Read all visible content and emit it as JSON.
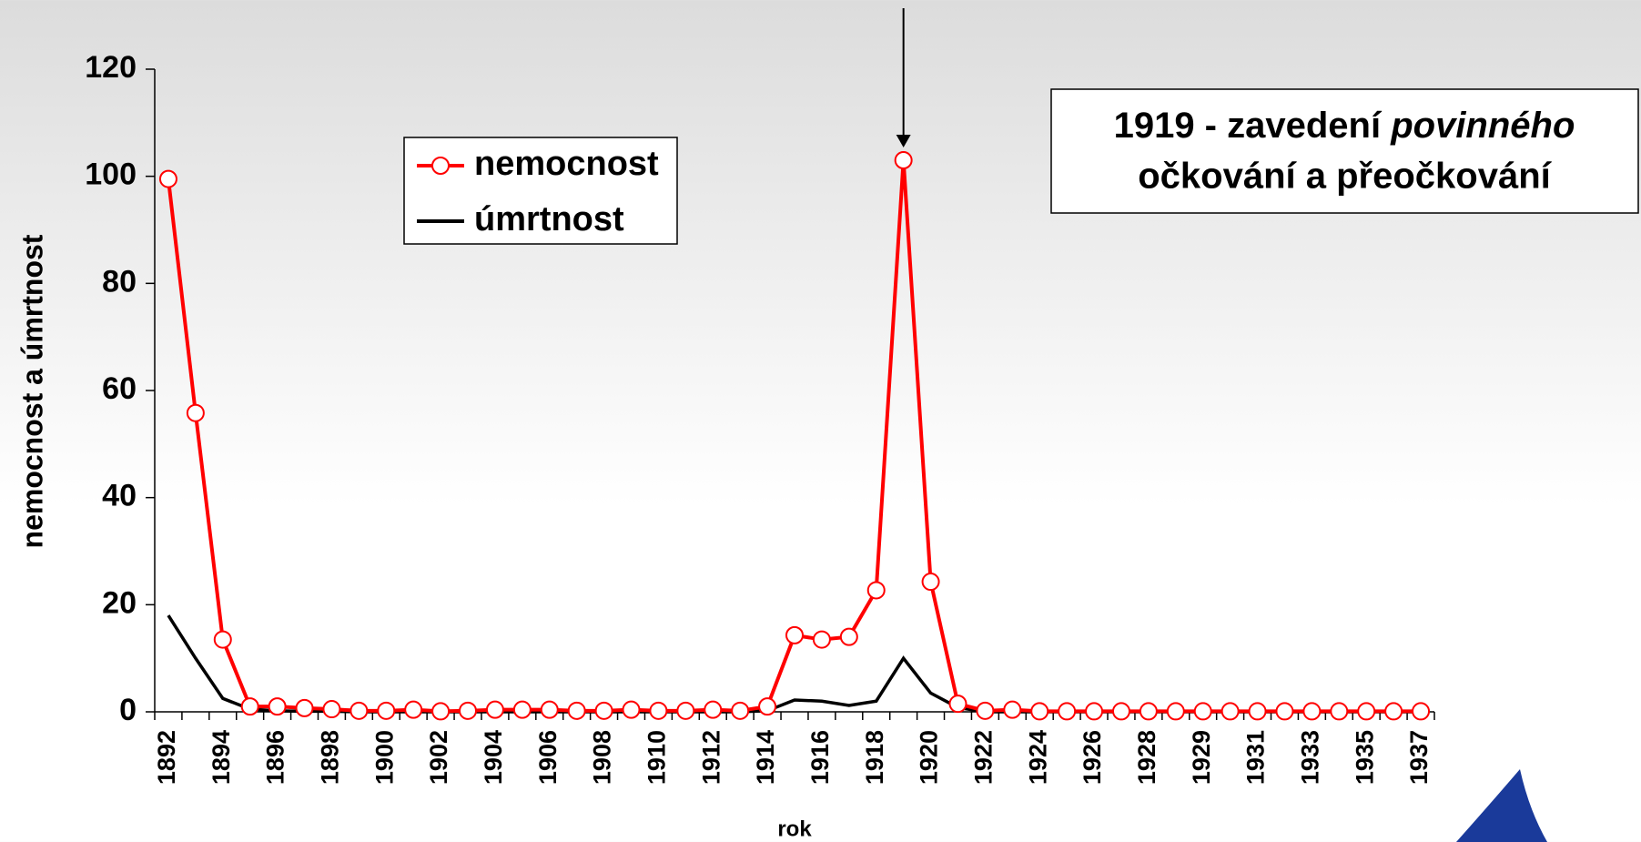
{
  "chart_data": {
    "type": "line",
    "x_label": "rok",
    "y_label": "nemocnost a úmrtnost",
    "annotation": {
      "line1": "1919 - zavedení",
      "line1_italic": "povinného",
      "line2": "očkování a přeočkování"
    },
    "categories": [
      "1892",
      null,
      "1894",
      null,
      "1896",
      null,
      "1898",
      null,
      "1900",
      null,
      "1902",
      null,
      "1904",
      null,
      "1906",
      null,
      "1908",
      null,
      "1910",
      null,
      "1912",
      null,
      "1914",
      null,
      "1916",
      null,
      "1918",
      null,
      "1920",
      null,
      "1922",
      null,
      "1924",
      null,
      "1926",
      null,
      "1928",
      null,
      "1929",
      null,
      "1931",
      null,
      "1933",
      null,
      "1935",
      null,
      "1937"
    ],
    "series": [
      {
        "name": "nemocnost",
        "color": "#ff0000",
        "marker": "circle",
        "values": [
          99.5,
          55.8,
          13.5,
          1,
          1,
          0.7,
          0.5,
          0.2,
          0.2,
          0.4,
          0.1,
          0.2,
          0.4,
          0.4,
          0.4,
          0.2,
          0.2,
          0.4,
          0.2,
          0.2,
          0.4,
          0.2,
          1,
          14.3,
          13.5,
          14,
          22.7,
          103,
          24.3,
          1.5,
          0.2,
          0.4,
          0.1,
          0.1,
          0.1,
          0.1,
          0.1,
          0.1,
          0.1,
          0.1,
          0.1,
          0.1,
          0.1,
          0.1,
          0.1,
          0.1,
          0.1
        ]
      },
      {
        "name": "úmrtnost",
        "color": "#000000",
        "values": [
          18,
          10,
          2.5,
          0.5,
          0.2,
          0.1,
          0.1,
          0,
          0,
          0,
          0,
          0,
          0,
          0,
          0,
          0,
          0,
          0,
          0,
          0,
          0,
          0,
          0.2,
          2.2,
          2,
          1.2,
          2,
          10,
          3.5,
          0.8,
          0,
          0,
          0,
          0,
          0,
          0,
          0,
          0,
          0,
          0,
          0,
          0,
          0,
          0,
          0,
          0,
          0
        ]
      }
    ],
    "ylim": [
      0,
      120
    ],
    "yticks": [
      0,
      20,
      40,
      60,
      80,
      100,
      120
    ],
    "grid": false
  }
}
